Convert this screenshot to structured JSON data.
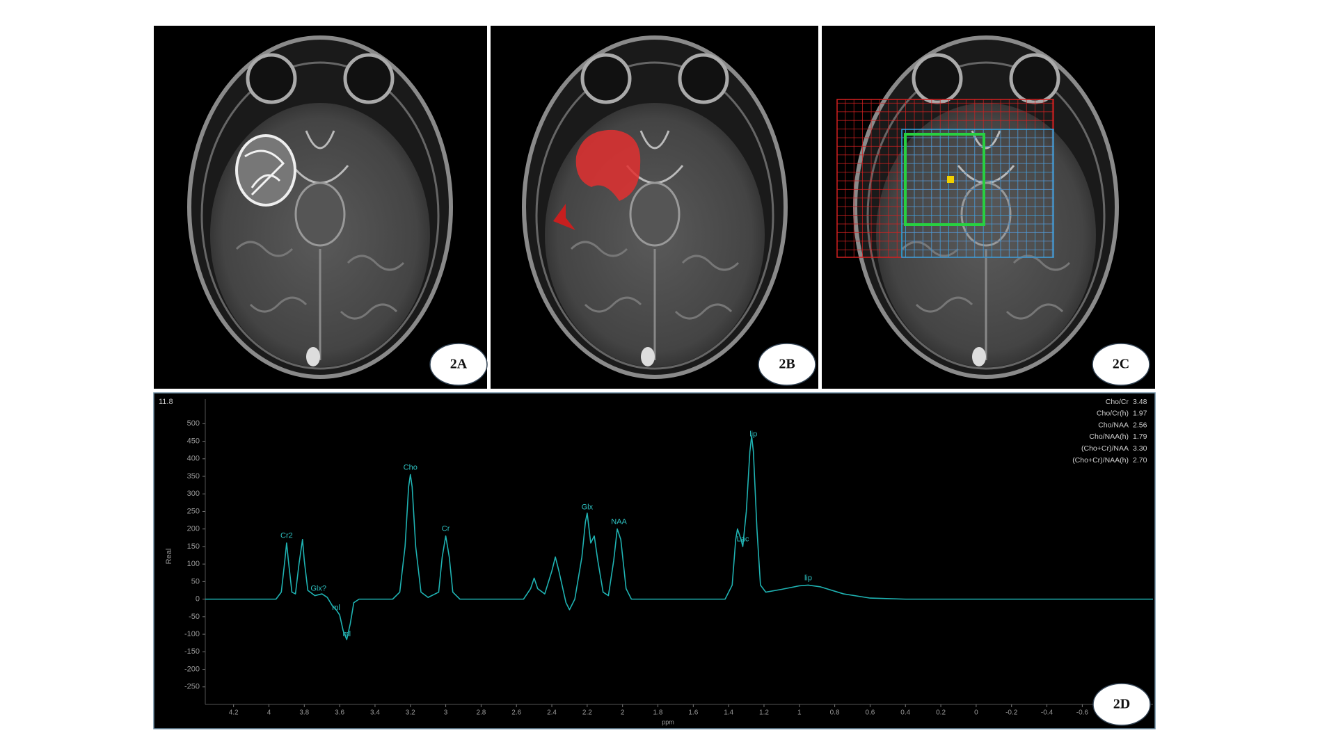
{
  "panels": [
    {
      "label": "2A"
    },
    {
      "label": "2B"
    },
    {
      "label": "2C"
    }
  ],
  "chart_data": {
    "type": "line",
    "panel_label": "2D",
    "corner_label": "11.8",
    "xlabel": "ppm",
    "ylabel": "Real",
    "xlim": [
      4.36,
      -1.0
    ],
    "ylim": [
      -300,
      570
    ],
    "xticks": [
      4.2,
      4,
      3.8,
      3.6,
      3.4,
      3.2,
      3,
      2.8,
      2.6,
      2.4,
      2.2,
      2,
      1.8,
      1.6,
      1.4,
      1.2,
      1,
      0.8,
      0.6,
      0.4,
      0.2,
      0,
      -0.2,
      -0.4,
      -0.6
    ],
    "yticks": [
      -250,
      -200,
      -150,
      -100,
      -50,
      0,
      50,
      100,
      150,
      200,
      250,
      300,
      350,
      400,
      450,
      500
    ],
    "x": [
      4.36,
      4.0,
      3.96,
      3.93,
      3.91,
      3.9,
      3.89,
      3.87,
      3.85,
      3.83,
      3.81,
      3.8,
      3.78,
      3.74,
      3.7,
      3.67,
      3.64,
      3.62,
      3.6,
      3.58,
      3.56,
      3.54,
      3.52,
      3.49,
      3.3,
      3.26,
      3.23,
      3.21,
      3.2,
      3.19,
      3.17,
      3.14,
      3.1,
      3.04,
      3.02,
      3.0,
      2.98,
      2.96,
      2.92,
      2.56,
      2.52,
      2.5,
      2.48,
      2.44,
      2.4,
      2.38,
      2.36,
      2.32,
      2.3,
      2.27,
      2.23,
      2.21,
      2.2,
      2.18,
      2.16,
      2.14,
      2.11,
      2.08,
      2.05,
      2.03,
      2.01,
      1.98,
      1.95,
      1.42,
      1.38,
      1.36,
      1.35,
      1.33,
      1.32,
      1.3,
      1.28,
      1.27,
      1.26,
      1.24,
      1.22,
      1.19,
      1.1,
      1.0,
      0.95,
      0.88,
      0.75,
      0.6,
      0.4,
      -1.0
    ],
    "series": [
      {
        "color": "#1fb3b3",
        "values": [
          0,
          0,
          0,
          20,
          110,
          160,
          110,
          20,
          15,
          100,
          170,
          110,
          25,
          10,
          15,
          5,
          -20,
          -30,
          -45,
          -90,
          -115,
          -70,
          -10,
          0,
          0,
          20,
          150,
          320,
          355,
          320,
          150,
          20,
          5,
          20,
          120,
          180,
          120,
          20,
          0,
          0,
          30,
          60,
          30,
          15,
          80,
          120,
          80,
          -10,
          -30,
          0,
          120,
          220,
          245,
          160,
          180,
          110,
          20,
          10,
          110,
          200,
          170,
          30,
          0,
          0,
          40,
          170,
          200,
          170,
          150,
          250,
          420,
          465,
          420,
          200,
          40,
          20,
          28,
          38,
          40,
          35,
          15,
          3,
          0,
          0
        ]
      }
    ],
    "annotations": [
      {
        "text": "Cr2",
        "x": 3.9,
        "y": 180
      },
      {
        "text": "Glx?",
        "x": 3.72,
        "y": 30
      },
      {
        "text": "ml",
        "x": 3.62,
        "y": -25
      },
      {
        "text": "ml",
        "x": 3.56,
        "y": -100
      },
      {
        "text": "Cho",
        "x": 3.2,
        "y": 375
      },
      {
        "text": "Cr",
        "x": 3.0,
        "y": 200
      },
      {
        "text": "Glx",
        "x": 2.2,
        "y": 262
      },
      {
        "text": "NAA",
        "x": 2.02,
        "y": 220
      },
      {
        "text": "Lac",
        "x": 1.32,
        "y": 170
      },
      {
        "text": "lip",
        "x": 1.26,
        "y": 470
      },
      {
        "text": "lip",
        "x": 0.95,
        "y": 60
      }
    ],
    "ratios": [
      {
        "name": "Cho/Cr",
        "value": "3.48"
      },
      {
        "name": "Cho/Cr(h)",
        "value": "1.97"
      },
      {
        "name": "Cho/NAA",
        "value": "2.56"
      },
      {
        "name": "Cho/NAA(h)",
        "value": "1.79"
      },
      {
        "name": "(Cho+Cr)/NAA",
        "value": "3.30"
      },
      {
        "name": "(Cho+Cr)/NAA(h)",
        "value": "2.70"
      }
    ]
  }
}
